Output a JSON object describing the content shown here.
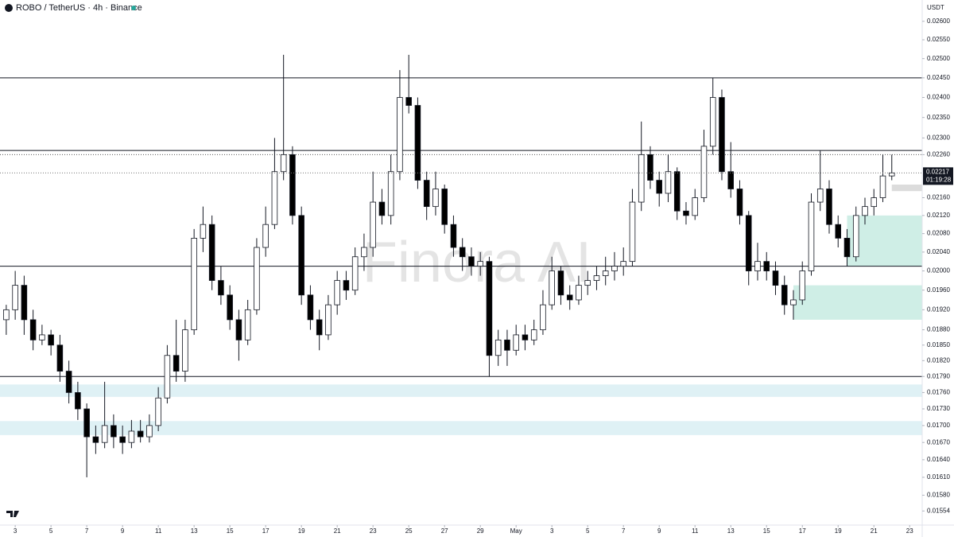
{
  "chart_data": {
    "type": "candlestick",
    "title": "ROBO / TetherUS · 4h · Binance",
    "y_unit": "USDT",
    "watermark": "Finora AI",
    "countdown": "01:19:28",
    "log_scale": true,
    "grid": false,
    "up_color": "#ffffff",
    "down_color": "#000000",
    "open": [
      0.019,
      0.0192,
      0.0197,
      0.019,
      0.0186,
      0.0187,
      0.0185,
      0.018,
      0.0176,
      0.0173,
      0.0168,
      0.0167,
      0.017,
      0.0168,
      0.0167,
      0.0169,
      0.0168,
      0.017,
      0.0175,
      0.0183,
      0.018,
      0.0188,
      0.0207,
      0.021,
      0.0198,
      0.0195,
      0.019,
      0.0186,
      0.0192,
      0.0205,
      0.021,
      0.0222,
      0.0226,
      0.0212,
      0.0195,
      0.019,
      0.0187,
      0.0193,
      0.0198,
      0.0196,
      0.0203,
      0.0205,
      0.0215,
      0.0212,
      0.0222,
      0.024,
      0.0238,
      0.022,
      0.0214,
      0.0218,
      0.021,
      0.0205,
      0.0203,
      0.0201,
      0.0202,
      0.0183,
      0.0186,
      0.0184,
      0.0187,
      0.0186,
      0.0188,
      0.0193,
      0.02,
      0.0195,
      0.0194,
      0.0197,
      0.0198,
      0.0199,
      0.02,
      0.0201,
      0.0202,
      0.0215,
      0.0226,
      0.022,
      0.0217,
      0.0222,
      0.0213,
      0.0212,
      0.0216,
      0.0228,
      0.024,
      0.0222,
      0.0218,
      0.0212,
      0.02,
      0.0202,
      0.02,
      0.0197,
      0.0193,
      0.0194,
      0.02,
      0.0215,
      0.0218,
      0.021,
      0.0207,
      0.0203,
      0.0212,
      0.0214,
      0.0216,
      0.0221
    ],
    "high": [
      0.0193,
      0.02,
      0.0199,
      0.0192,
      0.0189,
      0.0188,
      0.0187,
      0.0182,
      0.0178,
      0.0174,
      0.017,
      0.0178,
      0.0172,
      0.017,
      0.0171,
      0.0171,
      0.0172,
      0.0177,
      0.0185,
      0.019,
      0.019,
      0.0209,
      0.0214,
      0.0212,
      0.0201,
      0.0197,
      0.0192,
      0.0194,
      0.0207,
      0.0214,
      0.023,
      0.0251,
      0.0228,
      0.0214,
      0.0197,
      0.0192,
      0.0195,
      0.02,
      0.02,
      0.0205,
      0.0208,
      0.0222,
      0.0218,
      0.0226,
      0.0247,
      0.0251,
      0.024,
      0.0222,
      0.0222,
      0.0219,
      0.0212,
      0.0207,
      0.0205,
      0.0204,
      0.0203,
      0.0188,
      0.0188,
      0.0189,
      0.0189,
      0.019,
      0.0196,
      0.0203,
      0.0201,
      0.0197,
      0.0199,
      0.02,
      0.0201,
      0.0203,
      0.0204,
      0.0205,
      0.0218,
      0.0234,
      0.0228,
      0.0222,
      0.0226,
      0.0223,
      0.0215,
      0.0218,
      0.0232,
      0.0245,
      0.0242,
      0.0229,
      0.022,
      0.0213,
      0.0206,
      0.0204,
      0.0202,
      0.0199,
      0.0196,
      0.0202,
      0.0217,
      0.0227,
      0.022,
      0.0212,
      0.0209,
      0.0214,
      0.0216,
      0.0218,
      0.0226,
      0.0226
    ],
    "low": [
      0.0187,
      0.019,
      0.0187,
      0.0184,
      0.0185,
      0.0183,
      0.0178,
      0.0174,
      0.0171,
      0.0161,
      0.0165,
      0.0166,
      0.0166,
      0.0165,
      0.0166,
      0.0167,
      0.0167,
      0.0169,
      0.0174,
      0.0178,
      0.0178,
      0.0187,
      0.0204,
      0.0196,
      0.0193,
      0.0188,
      0.0182,
      0.0185,
      0.0191,
      0.0203,
      0.0209,
      0.022,
      0.021,
      0.0193,
      0.0188,
      0.0184,
      0.0186,
      0.0191,
      0.0194,
      0.0195,
      0.02,
      0.0203,
      0.021,
      0.021,
      0.022,
      0.0236,
      0.0218,
      0.0211,
      0.0212,
      0.0208,
      0.0203,
      0.02,
      0.0199,
      0.0199,
      0.0179,
      0.0181,
      0.0181,
      0.0183,
      0.0184,
      0.0185,
      0.0187,
      0.0192,
      0.0193,
      0.0192,
      0.0193,
      0.0195,
      0.0196,
      0.0197,
      0.0198,
      0.0199,
      0.0201,
      0.0213,
      0.0218,
      0.0214,
      0.0215,
      0.0211,
      0.021,
      0.0211,
      0.0215,
      0.0226,
      0.022,
      0.0216,
      0.021,
      0.0197,
      0.0198,
      0.0198,
      0.0195,
      0.0191,
      0.019,
      0.0193,
      0.0199,
      0.0213,
      0.0208,
      0.0205,
      0.0201,
      0.0202,
      0.021,
      0.0212,
      0.0215,
      0.022
    ],
    "close": [
      0.0192,
      0.0197,
      0.019,
      0.0186,
      0.0187,
      0.0185,
      0.018,
      0.0176,
      0.0173,
      0.0168,
      0.0167,
      0.017,
      0.0168,
      0.0167,
      0.0169,
      0.0168,
      0.017,
      0.0175,
      0.0183,
      0.018,
      0.0188,
      0.0207,
      0.021,
      0.0198,
      0.0195,
      0.019,
      0.0186,
      0.0192,
      0.0205,
      0.021,
      0.0222,
      0.0226,
      0.0212,
      0.0195,
      0.019,
      0.0187,
      0.0193,
      0.0198,
      0.0196,
      0.0203,
      0.0205,
      0.0215,
      0.0212,
      0.0222,
      0.024,
      0.0238,
      0.022,
      0.0214,
      0.0218,
      0.021,
      0.0205,
      0.0203,
      0.0201,
      0.0202,
      0.0183,
      0.0186,
      0.0184,
      0.0187,
      0.0186,
      0.0188,
      0.0193,
      0.02,
      0.0195,
      0.0194,
      0.0197,
      0.0198,
      0.0199,
      0.02,
      0.0201,
      0.0202,
      0.0215,
      0.0226,
      0.022,
      0.0217,
      0.0222,
      0.0213,
      0.0212,
      0.0216,
      0.0228,
      0.024,
      0.0222,
      0.0218,
      0.0212,
      0.02,
      0.0202,
      0.02,
      0.0197,
      0.0193,
      0.0194,
      0.02,
      0.0215,
      0.0218,
      0.021,
      0.0207,
      0.0203,
      0.0212,
      0.0214,
      0.0216,
      0.0221,
      0.02217
    ],
    "xlim": [
      -0.7,
      102.4
    ],
    "xticks": [
      {
        "value": 1,
        "label": "3"
      },
      {
        "value": 5,
        "label": "5"
      },
      {
        "value": 9,
        "label": "7"
      },
      {
        "value": 13,
        "label": "9"
      },
      {
        "value": 17,
        "label": "11"
      },
      {
        "value": 21,
        "label": "13"
      },
      {
        "value": 25,
        "label": "15"
      },
      {
        "value": 29,
        "label": "17"
      },
      {
        "value": 33,
        "label": "19"
      },
      {
        "value": 37,
        "label": "21"
      },
      {
        "value": 41,
        "label": "23"
      },
      {
        "value": 45,
        "label": "25"
      },
      {
        "value": 49,
        "label": "27"
      },
      {
        "value": 53,
        "label": "29"
      },
      {
        "value": 57,
        "label": "May"
      },
      {
        "value": 61,
        "label": "3"
      },
      {
        "value": 65,
        "label": "5"
      },
      {
        "value": 69,
        "label": "7"
      },
      {
        "value": 73,
        "label": "9"
      },
      {
        "value": 77,
        "label": "11"
      },
      {
        "value": 81,
        "label": "13"
      },
      {
        "value": 85,
        "label": "15"
      },
      {
        "value": 89,
        "label": "17"
      },
      {
        "value": 93,
        "label": "19"
      },
      {
        "value": 97,
        "label": "21"
      },
      {
        "value": 101,
        "label": "23"
      }
    ],
    "ylim": [
      0.01535,
      0.0265
    ],
    "yticks": [
      {
        "value": 0.026,
        "label": "0.02600"
      },
      {
        "value": 0.0255,
        "label": "0.02550"
      },
      {
        "value": 0.025,
        "label": "0.02500"
      },
      {
        "value": 0.0245,
        "label": "0.02450"
      },
      {
        "value": 0.024,
        "label": "0.02400"
      },
      {
        "value": 0.0235,
        "label": "0.02350"
      },
      {
        "value": 0.023,
        "label": "0.02300"
      },
      {
        "value": 0.0226,
        "label": "0.02260"
      },
      {
        "value": 0.0216,
        "label": "0.02160"
      },
      {
        "value": 0.0212,
        "label": "0.02120"
      },
      {
        "value": 0.0208,
        "label": "0.02080"
      },
      {
        "value": 0.0204,
        "label": "0.02040"
      },
      {
        "value": 0.02,
        "label": "0.02000"
      },
      {
        "value": 0.0196,
        "label": "0.01960"
      },
      {
        "value": 0.0192,
        "label": "0.01920"
      },
      {
        "value": 0.0188,
        "label": "0.01880"
      },
      {
        "value": 0.0185,
        "label": "0.01850"
      },
      {
        "value": 0.0182,
        "label": "0.01820"
      },
      {
        "value": 0.0179,
        "label": "0.01790"
      },
      {
        "value": 0.0176,
        "label": "0.01760"
      },
      {
        "value": 0.0173,
        "label": "0.01730"
      },
      {
        "value": 0.017,
        "label": "0.01700"
      },
      {
        "value": 0.0167,
        "label": "0.01670"
      },
      {
        "value": 0.0164,
        "label": "0.01640"
      },
      {
        "value": 0.0161,
        "label": "0.01610"
      },
      {
        "value": 0.0158,
        "label": "0.01580"
      },
      {
        "value": 0.01554,
        "label": "0.01554"
      }
    ],
    "hlines": [
      0.0245,
      0.0227,
      0.0201,
      0.0179
    ],
    "dotted_lines": [
      0.0226
    ],
    "bands": [
      {
        "from": 0.01775,
        "to": 0.01752,
        "color": "#dff1f5"
      },
      {
        "from": 0.01708,
        "to": 0.01683,
        "color": "#dff1f5"
      }
    ],
    "zones": [
      {
        "from": 0.0212,
        "to": 0.0201,
        "start": 94,
        "color": "#cfeee6"
      },
      {
        "from": 0.0197,
        "to": 0.019,
        "start": 88,
        "color": "#cfeee6"
      },
      {
        "from": 0.0219,
        "to": 0.02175,
        "start": 99,
        "color": "#dcdcdc"
      }
    ]
  }
}
